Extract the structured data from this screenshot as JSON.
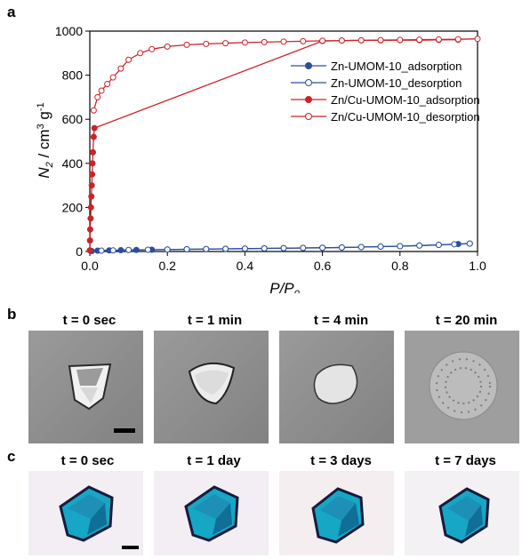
{
  "panel_labels": {
    "a": "a",
    "b": "b",
    "c": "c"
  },
  "chart_data": {
    "type": "line",
    "xlabel": "P/P",
    "xlabel_sub": "0",
    "ylabel": "N",
    "ylabel_sub": "2",
    "ylabel_rest": " / cm",
    "ylabel_sup1": "3",
    "ylabel_g": " g",
    "ylabel_sup2": "-1",
    "xlim": [
      0,
      1.0
    ],
    "ylim": [
      0,
      1000
    ],
    "x_ticks": [
      "0.0",
      "0.2",
      "0.4",
      "0.6",
      "0.8",
      "1.0"
    ],
    "y_ticks": [
      "0",
      "200",
      "400",
      "600",
      "800",
      "1000"
    ],
    "legend_position": "center-right",
    "series": [
      {
        "name": "Zn-UMOM-10_adsorption",
        "color": "#2b4fa0",
        "filled": true,
        "x": [
          0.005,
          0.02,
          0.05,
          0.08,
          0.12,
          0.16,
          0.2,
          0.25,
          0.3,
          0.35,
          0.4,
          0.45,
          0.5,
          0.55,
          0.6,
          0.65,
          0.7,
          0.75,
          0.8,
          0.85,
          0.9,
          0.95,
          0.98
        ],
        "y": [
          2,
          4,
          5,
          6,
          7,
          8,
          9,
          10,
          11,
          12,
          13,
          14,
          15,
          16,
          17,
          18,
          20,
          22,
          24,
          27,
          30,
          34,
          36
        ]
      },
      {
        "name": "Zn-UMOM-10_desorption",
        "color": "#2b4fa0",
        "filled": false,
        "x": [
          0.98,
          0.94,
          0.9,
          0.85,
          0.8,
          0.75,
          0.7,
          0.65,
          0.6,
          0.55,
          0.5,
          0.45,
          0.4,
          0.35,
          0.3,
          0.25,
          0.2,
          0.15,
          0.1,
          0.06,
          0.03
        ],
        "y": [
          36,
          33,
          30,
          27,
          24,
          22,
          20,
          18,
          17,
          16,
          15,
          14,
          13,
          12,
          11,
          10,
          9,
          8,
          7,
          5,
          4
        ]
      },
      {
        "name": "Zn/Cu-UMOM-10_adsorption",
        "color": "#cc2229",
        "filled": true,
        "x": [
          0.0,
          0.0005,
          0.001,
          0.002,
          0.003,
          0.004,
          0.005,
          0.006,
          0.007,
          0.008,
          0.01,
          0.012,
          0.6,
          0.65,
          0.7,
          0.75,
          0.8,
          0.85,
          0.9,
          0.95
        ],
        "y": [
          5,
          50,
          100,
          150,
          200,
          250,
          300,
          350,
          400,
          450,
          520,
          560,
          955,
          957,
          958,
          958,
          959,
          959,
          960,
          961
        ]
      },
      {
        "name": "Zn/Cu-UMOM-10_desorption",
        "color": "#cc2229",
        "filled": false,
        "x": [
          1.0,
          0.95,
          0.9,
          0.85,
          0.8,
          0.75,
          0.7,
          0.65,
          0.6,
          0.55,
          0.5,
          0.45,
          0.4,
          0.35,
          0.3,
          0.25,
          0.2,
          0.16,
          0.13,
          0.1,
          0.08,
          0.06,
          0.045,
          0.03,
          0.02,
          0.01
        ],
        "y": [
          965,
          963,
          962,
          961,
          960,
          959,
          958,
          957,
          956,
          954,
          952,
          950,
          948,
          945,
          942,
          938,
          930,
          918,
          900,
          870,
          830,
          790,
          760,
          730,
          700,
          640
        ]
      }
    ]
  },
  "panel_b": {
    "titles": [
      "t = 0 sec",
      "t = 1 min",
      "t = 4 min",
      "t = 20 min"
    ]
  },
  "panel_c": {
    "titles": [
      "t = 0 sec",
      "t = 1 day",
      "t = 3 days",
      "t = 7 days"
    ]
  }
}
